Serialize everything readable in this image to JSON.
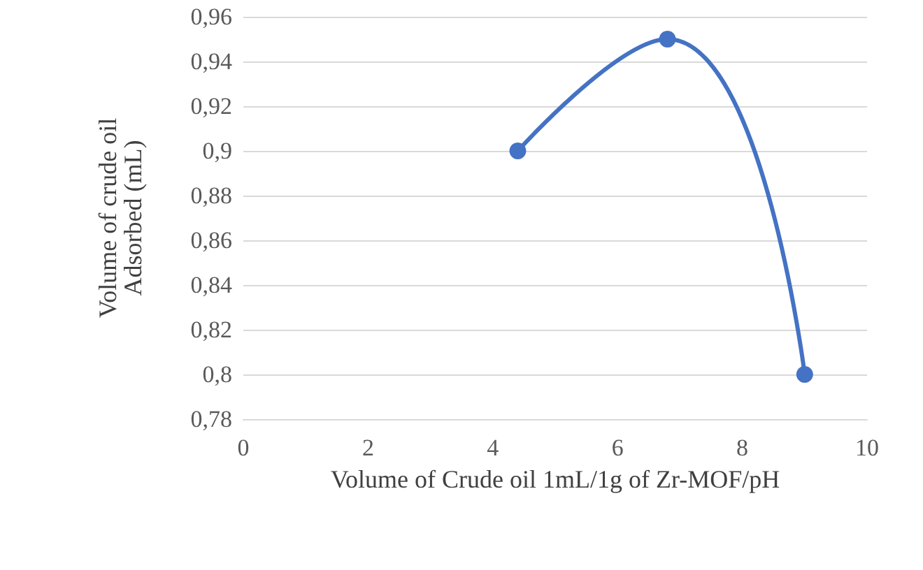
{
  "chart_data": {
    "type": "line",
    "xlabel": "Volume of Crude oil 1mL/1g of Zr-MOF/pH",
    "ylabel": "Volume of crude oil\nAdsorbed (mL)",
    "series": [
      {
        "color": "#4472c4",
        "x": [
          4.4,
          6.8,
          9
        ],
        "values": [
          0.9,
          0.95,
          0.8
        ]
      }
    ],
    "xlim": [
      0,
      10
    ],
    "xticks": [
      0,
      2,
      4,
      6,
      8,
      10
    ],
    "ylim": [
      0.78,
      0.96
    ],
    "yticks": [
      {
        "value": 0.78,
        "label": "0,78"
      },
      {
        "value": 0.8,
        "label": "0,8"
      },
      {
        "value": 0.82,
        "label": "0,82"
      },
      {
        "value": 0.84,
        "label": "0,84"
      },
      {
        "value": 0.86,
        "label": "0,86"
      },
      {
        "value": 0.88,
        "label": "0,88"
      },
      {
        "value": 0.9,
        "label": "0,9"
      },
      {
        "value": 0.92,
        "label": "0,92"
      },
      {
        "value": 0.94,
        "label": "0,94"
      },
      {
        "value": 0.96,
        "label": "0,96"
      }
    ],
    "grid": "y",
    "marker": "circle",
    "line_style": "solid"
  }
}
